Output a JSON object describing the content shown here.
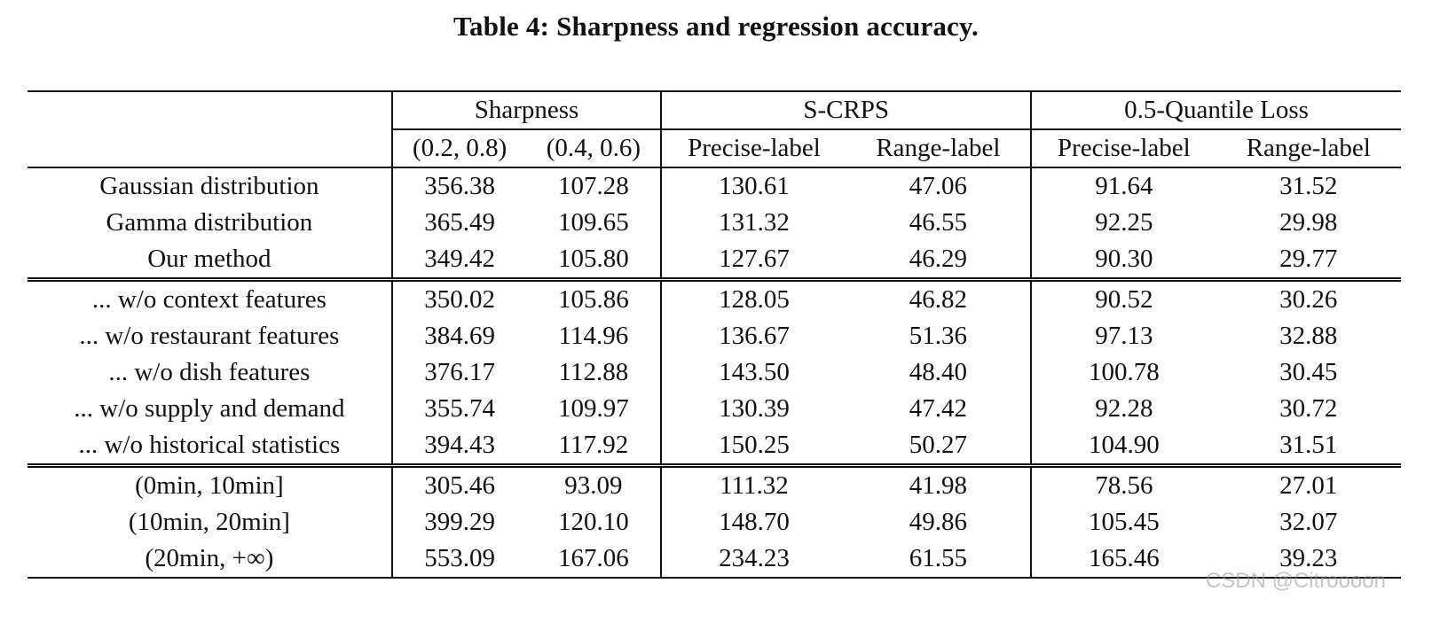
{
  "caption": "Table 4: Sharpness and regression accuracy.",
  "header": {
    "groups": [
      "Sharpness",
      "S-CRPS",
      "0.5-Quantile Loss"
    ],
    "subcols": [
      "(0.2, 0.8)",
      "(0.4, 0.6)",
      "Precise-label",
      "Range-label",
      "Precise-label",
      "Range-label"
    ]
  },
  "rows": [
    {
      "label": "Gaussian distribution",
      "values": [
        "356.38",
        "107.28",
        "130.61",
        "47.06",
        "91.64",
        "31.52"
      ]
    },
    {
      "label": "Gamma distribution",
      "values": [
        "365.49",
        "109.65",
        "131.32",
        "46.55",
        "92.25",
        "29.98"
      ]
    },
    {
      "label": "Our method",
      "values": [
        "349.42",
        "105.80",
        "127.67",
        "46.29",
        "90.30",
        "29.77"
      ]
    },
    {
      "label": "... w/o context features",
      "values": [
        "350.02",
        "105.86",
        "128.05",
        "46.82",
        "90.52",
        "30.26"
      ]
    },
    {
      "label": "... w/o restaurant features",
      "values": [
        "384.69",
        "114.96",
        "136.67",
        "51.36",
        "97.13",
        "32.88"
      ]
    },
    {
      "label": "... w/o dish features",
      "values": [
        "376.17",
        "112.88",
        "143.50",
        "48.40",
        "100.78",
        "30.45"
      ]
    },
    {
      "label": "... w/o supply and demand",
      "values": [
        "355.74",
        "109.97",
        "130.39",
        "47.42",
        "92.28",
        "30.72"
      ]
    },
    {
      "label": "... w/o historical statistics",
      "values": [
        "394.43",
        "117.92",
        "150.25",
        "50.27",
        "104.90",
        "31.51"
      ]
    },
    {
      "label": "(0min, 10min]",
      "values": [
        "305.46",
        "93.09",
        "111.32",
        "41.98",
        "78.56",
        "27.01"
      ]
    },
    {
      "label": "(10min, 20min]",
      "values": [
        "399.29",
        "120.10",
        "148.70",
        "49.86",
        "105.45",
        "32.07"
      ]
    },
    {
      "label": "(20min, +∞)",
      "values": [
        "553.09",
        "167.06",
        "234.23",
        "61.55",
        "165.46",
        "39.23"
      ]
    }
  ],
  "watermark": "CSDN @Citroooon"
}
